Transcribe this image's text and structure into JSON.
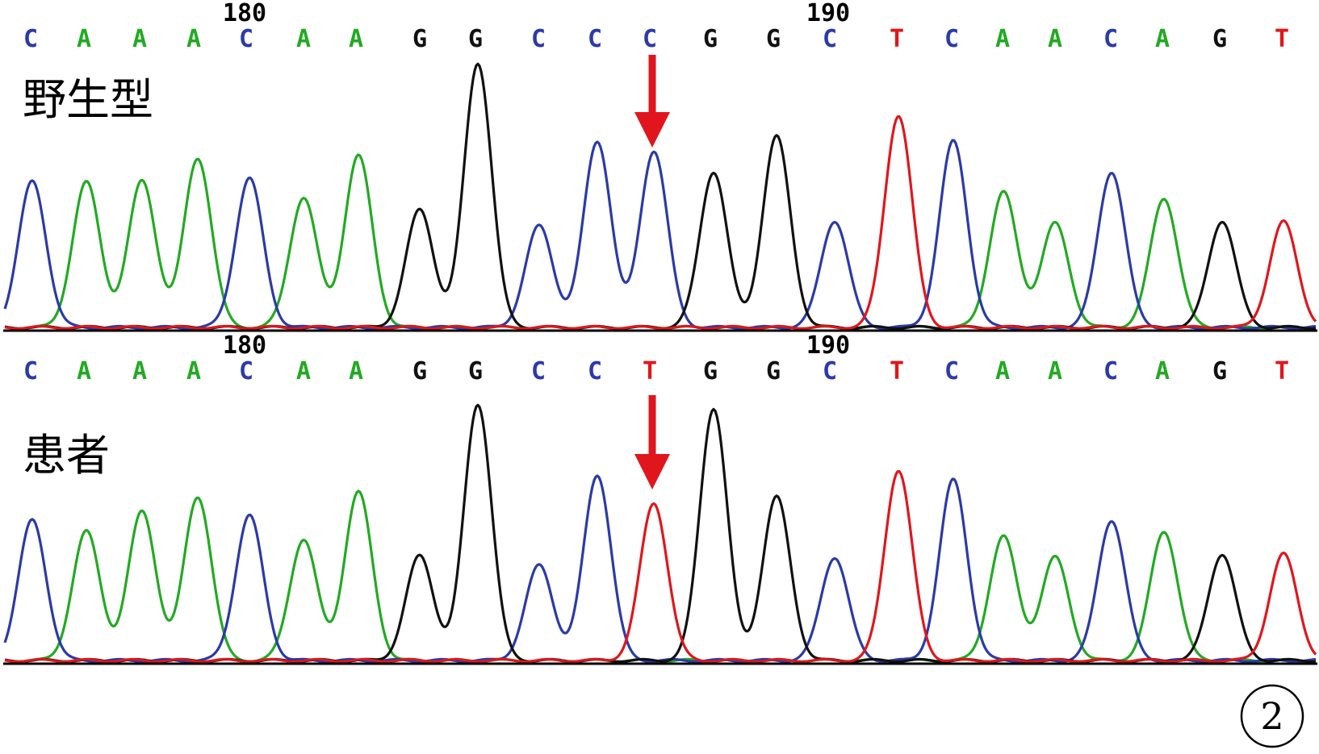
{
  "colors": {
    "A": "#22aa22",
    "C": "#2b3aa8",
    "G": "#111111",
    "T": "#e0161c",
    "arrow": "#e0161c"
  },
  "panel_number": "2",
  "chart_data": [
    {
      "type": "line",
      "label": "野生型",
      "start_position": 176,
      "position_labels": [
        {
          "position": 180,
          "text": "180"
        },
        {
          "position": 190,
          "text": "190"
        }
      ],
      "bases": [
        "C",
        "A",
        "A",
        "A",
        "C",
        "A",
        "A",
        "G",
        "G",
        "C",
        "C",
        "C",
        "G",
        "G",
        "C",
        "T",
        "C",
        "A",
        "A",
        "C",
        "A",
        "G",
        "T"
      ],
      "peak_heights": [
        181,
        180,
        182,
        210,
        185,
        161,
        213,
        146,
        328,
        126,
        231,
        219,
        193,
        237,
        132,
        263,
        231,
        168,
        129,
        193,
        160,
        132,
        131
      ],
      "highlight_index": 11
    },
    {
      "type": "line",
      "label": "患者",
      "start_position": 176,
      "position_labels": [
        {
          "position": 180,
          "text": "180"
        },
        {
          "position": 190,
          "text": "190"
        }
      ],
      "bases": [
        "C",
        "A",
        "A",
        "A",
        "C",
        "A",
        "A",
        "G",
        "G",
        "C",
        "C",
        "T",
        "G",
        "G",
        "C",
        "T",
        "C",
        "A",
        "A",
        "C",
        "A",
        "G",
        "T"
      ],
      "peak_heights": [
        174,
        160,
        185,
        203,
        180,
        150,
        209,
        130,
        318,
        118,
        230,
        195,
        313,
        203,
        128,
        236,
        224,
        154,
        128,
        174,
        160,
        132,
        132
      ],
      "highlight_index": 11
    }
  ]
}
